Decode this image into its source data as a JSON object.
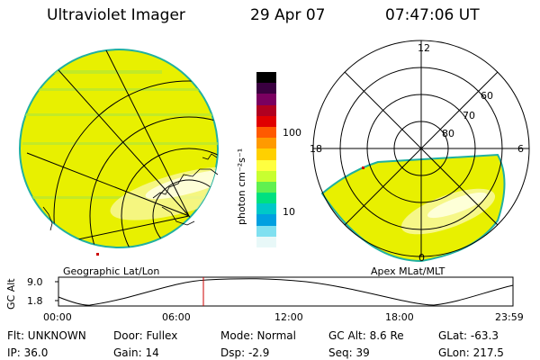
{
  "header": {
    "title": "Ultraviolet Imager",
    "date": "29 Apr 07",
    "time": "07:47:06 UT"
  },
  "geo_panel": {
    "label": "Geographic Lat/Lon"
  },
  "apex_panel": {
    "label": "Apex MLat/MLT",
    "mlt_labels": {
      "top": "12",
      "left": "18",
      "right": "6",
      "bottom": "0"
    },
    "mlat_labels": [
      "60",
      "70",
      "80"
    ]
  },
  "colorbar": {
    "unit_label": "photon cm⁻²s⁻¹",
    "tick_labels": [
      "100",
      "10"
    ],
    "colors": [
      "#000000",
      "#3a0040",
      "#7a0060",
      "#b00020",
      "#e00000",
      "#ff5a00",
      "#ff9a00",
      "#ffd000",
      "#ffff40",
      "#c8ff30",
      "#60f050",
      "#00e080",
      "#00c8c8",
      "#00a0e0",
      "#80e0f0",
      "#e8f8f8"
    ]
  },
  "altitude_plot": {
    "ylabel": "GC Alt",
    "yticks": [
      "9.0",
      "1.8"
    ],
    "xticks": [
      "00:00",
      "06:00",
      "12:00",
      "18:00",
      "23:59"
    ],
    "current_marker_color": "#cc0000"
  },
  "info": {
    "flt": "Flt: UNKNOWN",
    "ip": "IP: 36.0",
    "door": "Door: Fullex",
    "gain": "Gain: 14",
    "mode": "Mode: Normal",
    "dsp": "Dsp:    -2.9",
    "gcalt": "GC Alt: 8.6 Re",
    "seq": "Seq: 39",
    "glat": "GLat: -63.3",
    "glon": "GLon: 217.5"
  }
}
